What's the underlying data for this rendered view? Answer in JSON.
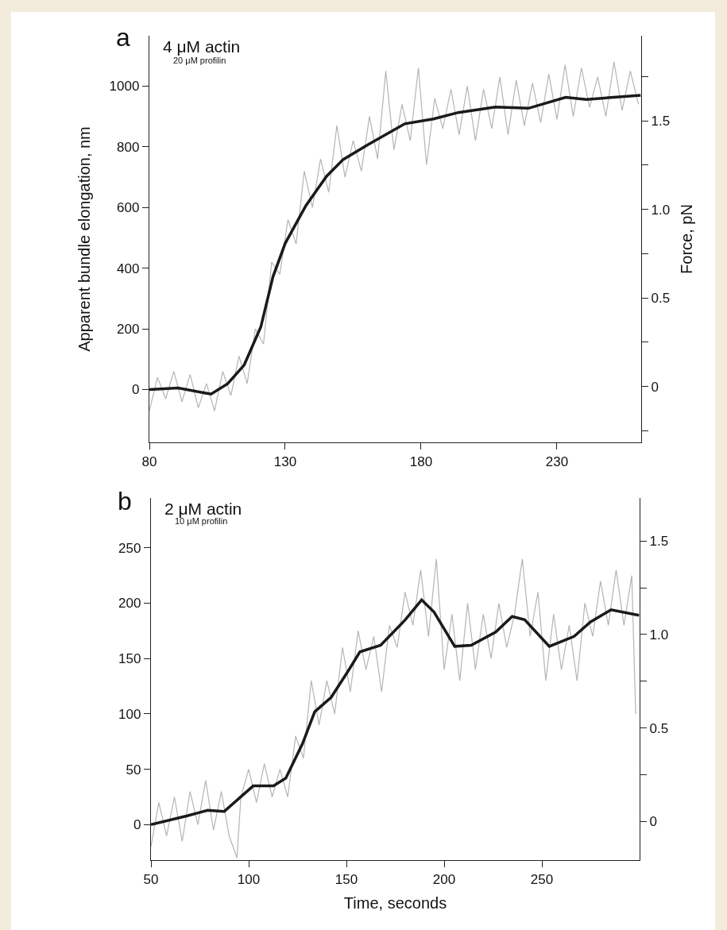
{
  "chart_data": [
    {
      "type": "line",
      "title": "4 μM actin",
      "subtitle": "20 μM profilin",
      "annotations": [
        "a"
      ],
      "ylabel": "Apparent bundle elongation, nm",
      "y2label": "Force, pN",
      "series": [
        {
          "color": "#b3b5b8",
          "x": [
            80,
            83,
            86,
            89,
            92,
            95,
            98,
            101,
            104,
            107,
            110,
            113,
            116,
            119,
            122,
            125,
            128,
            131,
            134,
            137,
            140,
            143,
            146,
            149,
            152,
            155,
            158,
            161,
            164,
            167,
            170,
            173,
            176,
            179,
            182,
            185,
            188,
            191,
            194,
            197,
            200,
            203,
            206,
            209,
            212,
            215,
            218,
            221,
            224,
            227,
            230,
            233,
            236,
            239,
            242,
            245,
            248,
            251,
            254,
            257,
            260
          ],
          "values": [
            -70,
            40,
            -30,
            60,
            -40,
            50,
            -60,
            20,
            -70,
            60,
            -20,
            110,
            20,
            200,
            150,
            420,
            380,
            560,
            480,
            720,
            600,
            760,
            650,
            870,
            700,
            820,
            720,
            900,
            760,
            1050,
            790,
            940,
            820,
            1060,
            740,
            960,
            860,
            990,
            840,
            1000,
            820,
            990,
            860,
            1030,
            840,
            1020,
            870,
            1010,
            880,
            1040,
            890,
            1070,
            900,
            1060,
            930,
            1030,
            900,
            1080,
            920,
            1050,
            940
          ]
        },
        {
          "color": "#1a1a1a",
          "x": [
            80,
            90.6,
            102.7,
            108.8,
            114.9,
            121,
            125.5,
            130,
            137.6,
            145.2,
            151.3,
            160.4,
            174,
            184.6,
            193.7,
            207.4,
            219.5,
            233.2,
            240.8,
            260.8
          ],
          "values": [
            0,
            5,
            -15,
            19,
            81,
            206,
            372,
            482,
            606,
            703,
            758,
            807,
            876,
            892,
            913,
            931,
            927,
            963,
            956,
            970
          ]
        }
      ],
      "xlim": [
        80,
        261
      ],
      "xticks": [
        80,
        130,
        180,
        230
      ],
      "ylim": [
        -174,
        1166
      ],
      "yticks": [
        0,
        200,
        400,
        600,
        800,
        1000
      ],
      "y2lim": [
        -0.315,
        1.98
      ],
      "y2ticks": [
        {
          "value": -0.25,
          "label": null
        },
        0,
        {
          "value": 0.25,
          "label": null
        },
        0.5,
        {
          "value": 0.75,
          "label": null
        },
        {
          "value": 1,
          "label": "1.0"
        },
        {
          "value": 1.25,
          "label": null
        },
        1.5,
        {
          "value": 1.75,
          "label": null
        }
      ],
      "grid": false
    },
    {
      "type": "line",
      "title": "2 μM actin",
      "subtitle": "10 μM profilin",
      "annotations": [
        "b"
      ],
      "xlabel": "Time, seconds",
      "series": [
        {
          "color": "#b3b5b8",
          "x": [
            50,
            54,
            58,
            62,
            66,
            70,
            74,
            78,
            82,
            86,
            90,
            94,
            96,
            100,
            104,
            108,
            112,
            116,
            120,
            124,
            128,
            132,
            136,
            140,
            144,
            148,
            152,
            156,
            160,
            164,
            168,
            172,
            176,
            180,
            184,
            188,
            192,
            196,
            200,
            204,
            208,
            212,
            216,
            220,
            224,
            228,
            232,
            236,
            240,
            244,
            248,
            252,
            256,
            260,
            264,
            268,
            272,
            276,
            280,
            284,
            288,
            292,
            296,
            298
          ],
          "values": [
            -20,
            20,
            -10,
            25,
            -15,
            30,
            0,
            40,
            -5,
            30,
            -10,
            -30,
            25,
            50,
            20,
            55,
            25,
            50,
            25,
            80,
            60,
            130,
            90,
            130,
            100,
            160,
            120,
            175,
            140,
            170,
            120,
            180,
            160,
            210,
            180,
            230,
            170,
            240,
            140,
            190,
            130,
            200,
            140,
            190,
            150,
            200,
            160,
            190,
            240,
            170,
            210,
            130,
            190,
            140,
            180,
            130,
            200,
            170,
            220,
            180,
            230,
            180,
            225,
            100
          ]
        },
        {
          "color": "#1a1a1a",
          "x": [
            50,
            68.5,
            79,
            87.5,
            102.3,
            112.7,
            119,
            127.5,
            133.8,
            142.2,
            150.6,
            156.9,
            167.5,
            180.1,
            188.5,
            194.8,
            205.4,
            213.8,
            226.4,
            234.8,
            241.2,
            253.8,
            266.5,
            274.8,
            285.4,
            299.7
          ],
          "values": [
            0,
            8,
            13,
            12,
            35,
            35,
            42,
            73,
            102,
            115,
            138,
            156,
            162,
            185,
            203,
            192,
            161,
            162,
            174,
            188,
            185,
            161,
            170,
            183,
            194,
            189
          ]
        }
      ],
      "xlim": [
        50,
        300
      ],
      "xticks": [
        50,
        100,
        150,
        200,
        250
      ],
      "ylim": [
        -32,
        295
      ],
      "yticks": [
        0,
        50,
        100,
        150,
        200,
        250
      ],
      "y2lim": [
        -0.207,
        1.73
      ],
      "y2ticks": [
        0,
        {
          "value": 0.25,
          "label": null
        },
        0.5,
        {
          "value": 0.75,
          "label": null
        },
        {
          "value": 1,
          "label": "1.0"
        },
        {
          "value": 1.25,
          "label": null
        },
        1.5
      ],
      "grid": false
    }
  ]
}
